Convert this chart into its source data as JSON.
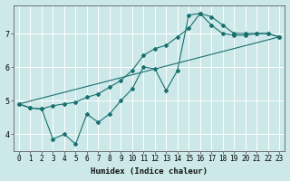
{
  "xlabel": "Humidex (Indice chaleur)",
  "background_color": "#cce8e8",
  "grid_color": "#ffffff",
  "line_color": "#1a7070",
  "xlim": [
    -0.5,
    23.5
  ],
  "ylim": [
    3.5,
    7.85
  ],
  "yticks": [
    4,
    5,
    6,
    7
  ],
  "xticks": [
    0,
    1,
    2,
    3,
    4,
    5,
    6,
    7,
    8,
    9,
    10,
    11,
    12,
    13,
    14,
    15,
    16,
    17,
    18,
    19,
    20,
    21,
    22,
    23
  ],
  "series": [
    {
      "x": [
        0,
        1,
        2,
        3,
        4,
        5,
        6,
        7,
        8,
        9,
        10,
        11,
        12,
        13,
        14,
        15,
        16,
        17,
        18,
        19,
        20,
        21,
        22,
        23
      ],
      "y": [
        4.9,
        4.78,
        4.75,
        3.85,
        4.0,
        3.7,
        4.6,
        4.35,
        4.6,
        5.0,
        5.35,
        6.0,
        5.95,
        5.3,
        5.9,
        7.55,
        7.6,
        7.5,
        7.25,
        7.0,
        7.0,
        7.0,
        7.0,
        6.9
      ],
      "marker": true
    },
    {
      "x": [
        0,
        1,
        2,
        3,
        4,
        5,
        6,
        7,
        8,
        9,
        10,
        11,
        12,
        13,
        14,
        15,
        16,
        17,
        18,
        19,
        20,
        21,
        22,
        23
      ],
      "y": [
        4.9,
        4.78,
        4.75,
        4.85,
        4.9,
        4.95,
        5.1,
        5.2,
        5.4,
        5.6,
        5.9,
        6.35,
        6.55,
        6.65,
        6.9,
        7.15,
        7.6,
        7.25,
        7.0,
        6.95,
        6.95,
        7.0,
        7.0,
        6.9
      ],
      "marker": true
    },
    {
      "x": [
        0,
        23
      ],
      "y": [
        4.9,
        6.9
      ],
      "marker": false
    }
  ]
}
